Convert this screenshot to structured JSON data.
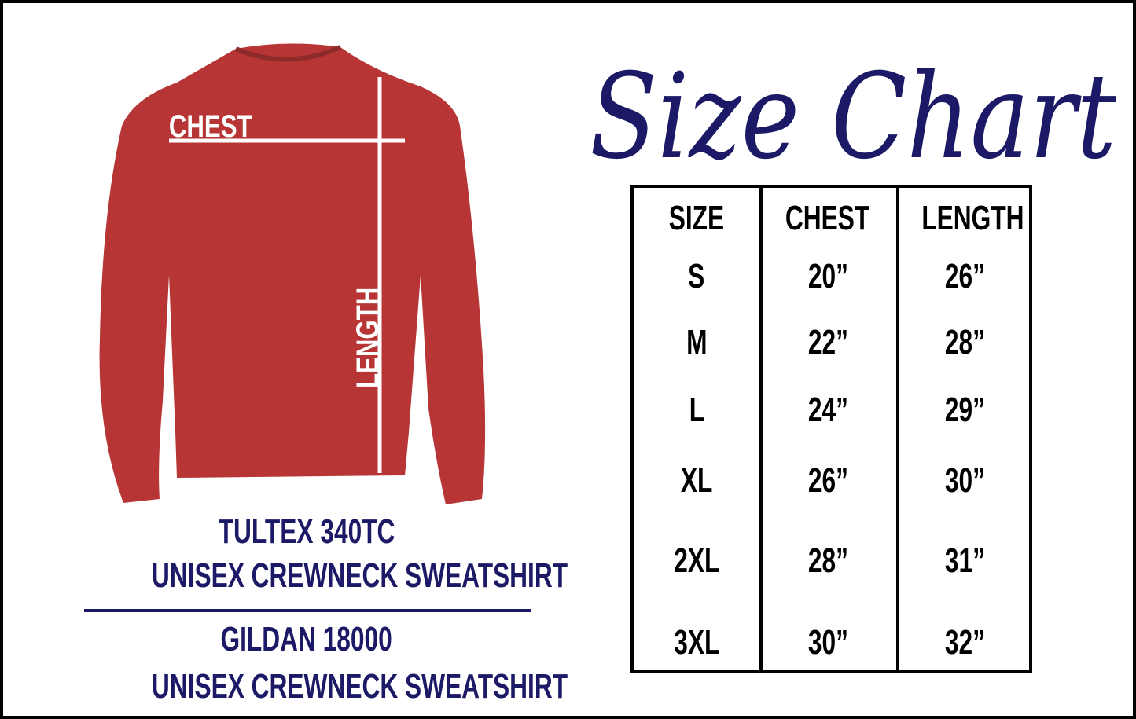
{
  "title": "Size Chart",
  "shirt": {
    "chest_label": "CHEST",
    "length_label": "LENGTH",
    "color": "#b83535"
  },
  "table": {
    "headers": [
      "SIZE",
      "CHEST",
      "LENGTH"
    ],
    "rows": [
      [
        "S",
        "20”",
        "26”"
      ],
      [
        "M",
        "22”",
        "28”"
      ],
      [
        "L",
        "24”",
        "29”"
      ],
      [
        "XL",
        "26”",
        "30”"
      ],
      [
        "2XL",
        "28”",
        "31”"
      ],
      [
        "3XL",
        "30”",
        "32”"
      ]
    ]
  },
  "products": [
    {
      "model": "TULTEX 340TC",
      "description": "UNISEX CREWNECK SWEATSHIRT"
    },
    {
      "model": "GILDAN 18000",
      "description": "UNISEX CREWNECK SWEATSHIRT"
    }
  ],
  "colors": {
    "navy": "#1c1a66",
    "black": "#000000"
  }
}
